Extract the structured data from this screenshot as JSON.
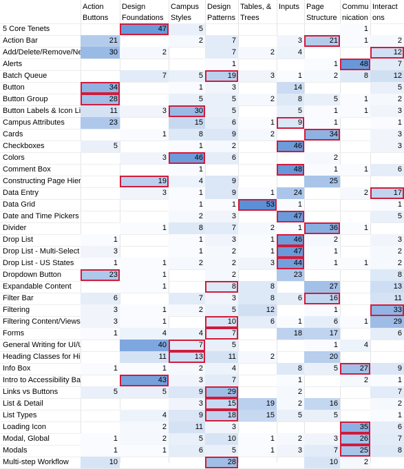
{
  "chart_data": {
    "type": "heatmap",
    "columns": [
      "Action\nButtons",
      "Design\nFoundations",
      "Campus\nStyles",
      "Design\nPatterns",
      "Tables, &\nTrees",
      "Inputs",
      "Page\nStructure",
      "Commu\nnication",
      "Interact\nons"
    ],
    "rows": [
      {
        "label": "5 Core Tenets",
        "values": [
          null,
          47,
          5,
          null,
          null,
          null,
          null,
          1,
          null
        ],
        "highlight": [
          1
        ]
      },
      {
        "label": "Action Bar",
        "values": [
          21,
          null,
          2,
          7,
          null,
          3,
          21,
          1,
          2
        ],
        "highlight": [
          6
        ]
      },
      {
        "label": "Add/Delete/Remove/Ne",
        "values": [
          30,
          2,
          null,
          7,
          2,
          4,
          null,
          null,
          12
        ],
        "highlight": [
          8
        ]
      },
      {
        "label": "Alerts",
        "values": [
          null,
          null,
          null,
          1,
          null,
          null,
          1,
          48,
          7
        ],
        "highlight": [
          7
        ]
      },
      {
        "label": "Batch Queue",
        "values": [
          null,
          7,
          5,
          19,
          3,
          1,
          2,
          8,
          12
        ],
        "highlight": [
          3
        ]
      },
      {
        "label": "Button",
        "values": [
          34,
          null,
          1,
          3,
          null,
          14,
          null,
          null,
          5
        ],
        "highlight": [
          0
        ]
      },
      {
        "label": "Button Group",
        "values": [
          28,
          null,
          5,
          5,
          2,
          8,
          5,
          1,
          2
        ],
        "highlight": [
          0
        ]
      },
      {
        "label": "Button Labels & Icon Lib",
        "values": [
          11,
          3,
          30,
          5,
          null,
          5,
          1,
          1,
          3
        ],
        "highlight": [
          2
        ]
      },
      {
        "label": "Campus Attributes",
        "values": [
          23,
          null,
          15,
          6,
          1,
          9,
          1,
          null,
          1
        ],
        "highlight": [
          5
        ]
      },
      {
        "label": "Cards",
        "values": [
          null,
          1,
          8,
          9,
          2,
          null,
          34,
          null,
          3
        ],
        "highlight": [
          6
        ]
      },
      {
        "label": "Checkboxes",
        "values": [
          5,
          null,
          1,
          2,
          null,
          46,
          null,
          null,
          3
        ],
        "highlight": [
          5
        ]
      },
      {
        "label": "Colors",
        "values": [
          null,
          3,
          46,
          6,
          null,
          null,
          2,
          null,
          null
        ],
        "highlight": [
          2
        ]
      },
      {
        "label": "Comment Box",
        "values": [
          null,
          null,
          1,
          null,
          null,
          48,
          1,
          1,
          6
        ],
        "highlight": [
          5
        ]
      },
      {
        "label": "Constructing Page Hierarchy",
        "values": [
          null,
          19,
          4,
          9,
          null,
          null,
          25,
          null,
          null
        ],
        "highlight": [
          1
        ]
      },
      {
        "label": "Data Entry",
        "values": [
          null,
          3,
          1,
          9,
          1,
          24,
          null,
          2,
          17
        ],
        "highlight": [
          8
        ]
      },
      {
        "label": "Data Grid",
        "values": [
          null,
          null,
          1,
          1,
          53,
          1,
          null,
          null,
          1
        ],
        "highlight": [
          4
        ]
      },
      {
        "label": "Date and Time Pickers",
        "values": [
          null,
          null,
          2,
          3,
          null,
          47,
          null,
          null,
          5
        ],
        "highlight": [
          5
        ]
      },
      {
        "label": "Divider",
        "values": [
          null,
          1,
          8,
          7,
          2,
          1,
          36,
          1,
          null
        ],
        "highlight": [
          6
        ]
      },
      {
        "label": "Drop List",
        "values": [
          1,
          null,
          1,
          3,
          1,
          46,
          2,
          null,
          3
        ],
        "highlight": [
          5
        ]
      },
      {
        "label": "Drop List - Multi-Select",
        "values": [
          3,
          null,
          1,
          2,
          1,
          47,
          1,
          null,
          2
        ],
        "highlight": [
          5
        ]
      },
      {
        "label": "Drop List - US States",
        "values": [
          1,
          1,
          2,
          2,
          3,
          44,
          1,
          1,
          2
        ],
        "highlight": [
          5
        ]
      },
      {
        "label": "Dropdown Button",
        "values": [
          23,
          1,
          null,
          2,
          null,
          23,
          null,
          null,
          8
        ],
        "highlight": [
          0
        ]
      },
      {
        "label": "Expandable Content",
        "values": [
          null,
          1,
          null,
          8,
          8,
          null,
          27,
          null,
          13
        ],
        "highlight": [
          3
        ]
      },
      {
        "label": "Filter Bar",
        "values": [
          6,
          null,
          7,
          3,
          8,
          6,
          16,
          null,
          11
        ],
        "highlight": [
          6
        ]
      },
      {
        "label": "Filtering",
        "values": [
          3,
          1,
          2,
          5,
          12,
          null,
          1,
          null,
          33
        ],
        "highlight": [
          8
        ]
      },
      {
        "label": "Filtering Content/Views",
        "values": [
          3,
          1,
          null,
          10,
          6,
          1,
          6,
          1,
          29
        ],
        "highlight": [
          3
        ]
      },
      {
        "label": "Forms",
        "values": [
          1,
          4,
          4,
          7,
          null,
          18,
          17,
          null,
          6
        ],
        "highlight": [
          3
        ]
      },
      {
        "label": "General Writing for UI/UX",
        "values": [
          null,
          40,
          7,
          5,
          null,
          null,
          1,
          4,
          null
        ],
        "highlight": [
          2
        ]
      },
      {
        "label": "Heading Classes for Hierarchy",
        "values": [
          null,
          11,
          13,
          11,
          2,
          null,
          20,
          null,
          null
        ],
        "highlight": [
          2
        ]
      },
      {
        "label": "Info Box",
        "values": [
          1,
          1,
          2,
          4,
          null,
          8,
          5,
          27,
          9
        ],
        "highlight": [
          7
        ]
      },
      {
        "label": "Intro to Accessibility Basics",
        "values": [
          null,
          43,
          3,
          7,
          null,
          1,
          null,
          2,
          1
        ],
        "highlight": [
          1
        ]
      },
      {
        "label": "Links vs Buttons",
        "values": [
          5,
          5,
          9,
          29,
          null,
          2,
          null,
          null,
          7
        ],
        "highlight": [
          3
        ]
      },
      {
        "label": "List & Detail",
        "values": [
          null,
          null,
          3,
          15,
          19,
          2,
          16,
          null,
          2
        ],
        "highlight": [
          3
        ]
      },
      {
        "label": "List Types",
        "values": [
          null,
          4,
          9,
          18,
          15,
          5,
          5,
          null,
          1
        ],
        "highlight": [
          3
        ]
      },
      {
        "label": "Loading Icon",
        "values": [
          null,
          2,
          11,
          3,
          null,
          null,
          null,
          35,
          6
        ],
        "highlight": [
          7
        ]
      },
      {
        "label": "Modal, Global",
        "values": [
          1,
          2,
          5,
          10,
          1,
          2,
          3,
          26,
          7
        ],
        "highlight": [
          7
        ]
      },
      {
        "label": "Modals",
        "values": [
          1,
          1,
          6,
          5,
          1,
          3,
          7,
          25,
          8
        ],
        "highlight": [
          7
        ]
      },
      {
        "label": "Multi-step Workflow",
        "values": [
          10,
          null,
          null,
          28,
          null,
          null,
          10,
          2,
          null
        ],
        "highlight": [
          3
        ]
      }
    ],
    "color_scale": {
      "min": 0,
      "max": 53,
      "low": "#ffffff",
      "high": "#5b8fd6"
    },
    "highlight_color": "#d11a3a"
  }
}
